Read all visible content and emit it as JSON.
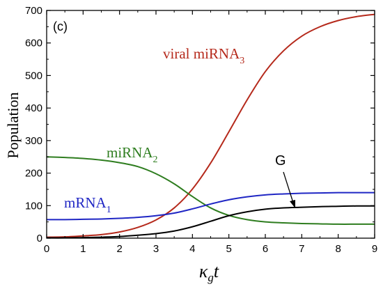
{
  "chart_data": {
    "type": "line",
    "panel_label": "(c)",
    "ylabel": "Population",
    "xlabel": {
      "main": "κ",
      "sub": "g",
      "tail": "t"
    },
    "xlim": [
      0,
      9
    ],
    "ylim": [
      0,
      700
    ],
    "xticks": [
      0,
      1,
      2,
      3,
      4,
      5,
      6,
      7,
      8,
      9
    ],
    "yticks": [
      0,
      100,
      200,
      300,
      400,
      500,
      600,
      700
    ],
    "grid": false,
    "x": [
      0,
      0.5,
      1,
      1.5,
      2,
      2.5,
      3,
      3.5,
      4,
      4.5,
      5,
      5.5,
      6,
      6.5,
      7,
      7.5,
      8,
      8.5,
      9
    ],
    "series": [
      {
        "name": "viral miRNA₃",
        "color": "#b5291b",
        "label": {
          "main": "viral miRNA",
          "sub": "3"
        },
        "values": [
          3,
          4,
          7,
          11,
          19,
          33,
          56,
          93,
          151,
          231,
          327,
          425,
          512,
          576,
          621,
          650,
          669,
          681,
          688
        ]
      },
      {
        "name": "miRNA₂",
        "color": "#2e7d1f",
        "label": {
          "main": "miRNA",
          "sub": "2"
        },
        "values": [
          250,
          248,
          245,
          240,
          232,
          220,
          198,
          167,
          128,
          93,
          70,
          57,
          50,
          47,
          45,
          44,
          43,
          43,
          43
        ]
      },
      {
        "name": "mRNA₁",
        "color": "#1f26c4",
        "label": {
          "main": "mRNA",
          "sub": "1"
        },
        "values": [
          57,
          57,
          58,
          59,
          61,
          64,
          69,
          77,
          90,
          105,
          118,
          127,
          133,
          136,
          138,
          139,
          140,
          140,
          140
        ]
      },
      {
        "name": "G",
        "color": "#000000",
        "label": {
          "main": "G",
          "sub": ""
        },
        "values": [
          1,
          1,
          2,
          3,
          5,
          9,
          14,
          22,
          35,
          52,
          69,
          81,
          89,
          93,
          95,
          97,
          98,
          99,
          99
        ]
      }
    ]
  }
}
